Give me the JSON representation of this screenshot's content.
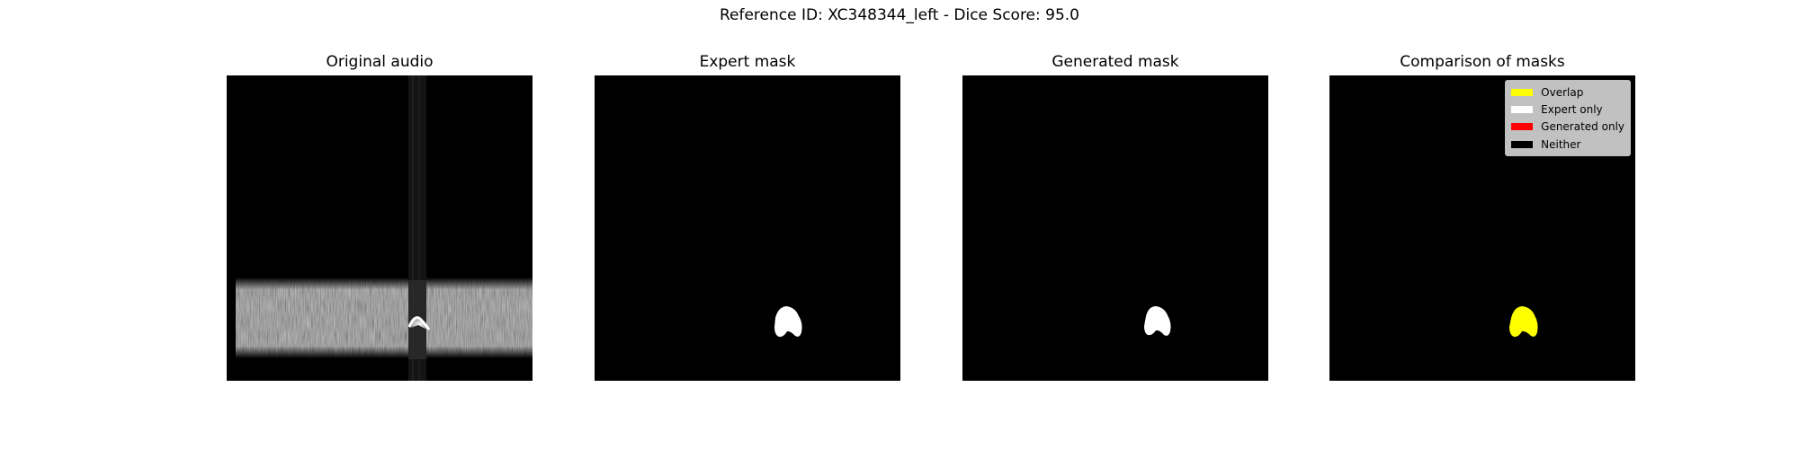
{
  "figure": {
    "title": "Reference ID: XC348344_left - Dice Score: 95.0"
  },
  "panels": [
    {
      "title": "Original audio"
    },
    {
      "title": "Expert mask"
    },
    {
      "title": "Generated mask"
    },
    {
      "title": "Comparison of masks"
    }
  ],
  "legend": [
    {
      "label": "Overlap",
      "color": "#ffff00"
    },
    {
      "label": "Expert only",
      "color": "#ffffff"
    },
    {
      "label": "Generated only",
      "color": "#ff0000"
    },
    {
      "label": "Neither",
      "color": "#000000"
    }
  ],
  "chart_data": [
    {
      "type": "heatmap",
      "title": "Original audio",
      "colormap": "gray",
      "grid": false,
      "content": "spectrogram with broadband noise band in lower portion, vertical noise stripe, bright call near bottom center-right"
    },
    {
      "type": "heatmap",
      "title": "Expert mask",
      "colormap": "binary",
      "grid": false
    },
    {
      "type": "heatmap",
      "title": "Generated mask",
      "colormap": "binary",
      "grid": false
    },
    {
      "type": "heatmap",
      "title": "Comparison of masks",
      "grid": false,
      "legend_position": "top-right",
      "classes": [
        "Overlap",
        "Expert only",
        "Generated only",
        "Neither"
      ]
    }
  ]
}
